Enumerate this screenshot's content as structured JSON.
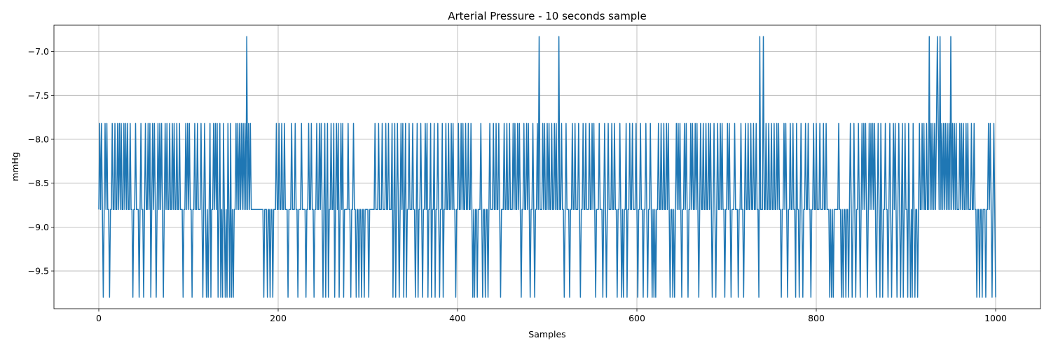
{
  "chart_data": {
    "type": "line",
    "title": "Arterial Pressure - 10 seconds sample",
    "xlabel": "Samples",
    "ylabel": "mmHg",
    "xlim": [
      -50,
      1050
    ],
    "ylim": [
      -9.93,
      -6.7
    ],
    "xticks": [
      0,
      200,
      400,
      600,
      800,
      1000
    ],
    "xtick_labels": [
      "0",
      "200",
      "400",
      "600",
      "800",
      "1000"
    ],
    "yticks": [
      -9.5,
      -9.0,
      -8.5,
      -8.0,
      -7.5,
      -7.0
    ],
    "ytick_labels": [
      "−9.5",
      "−9.0",
      "−8.5",
      "−8.0",
      "−7.5",
      "−7.0"
    ],
    "grid": true,
    "legend": "none",
    "levels": [
      -9.8,
      -8.8,
      -7.82,
      -6.83
    ],
    "series": [
      {
        "color": "#1f77b4",
        "x_start": 0,
        "x_step": 1,
        "count": 1001,
        "peak_samples": [
          165,
          491,
          513,
          737,
          741,
          926,
          935,
          938,
          950
        ],
        "low_samples": [
          5,
          12,
          38,
          45,
          50,
          58,
          64,
          72,
          94,
          104,
          116,
          120,
          122,
          125,
          133,
          136,
          138,
          141,
          143,
          146,
          148,
          150,
          184,
          188,
          191,
          194,
          211,
          222,
          231,
          240,
          250,
          253,
          256,
          263,
          268,
          273,
          281,
          287,
          290,
          293,
          296,
          301,
          328,
          331,
          335,
          340,
          343,
          353,
          356,
          361,
          367,
          371,
          375,
          380,
          384,
          398,
          417,
          419,
          422,
          428,
          431,
          434,
          448,
          471,
          481,
          486,
          519,
          525,
          537,
          554,
          562,
          566,
          578,
          583,
          585,
          589,
          601,
          607,
          612,
          617,
          619,
          621,
          637,
          640,
          642,
          650,
          657,
          669,
          684,
          688,
          698,
          705,
          713,
          719,
          736,
          761,
          768,
          777,
          781,
          785,
          794,
          815,
          817,
          819,
          828,
          830,
          833,
          836,
          840,
          844,
          849,
          857,
          867,
          871,
          874,
          880,
          884,
          890,
          894,
          897,
          902,
          905,
          907,
          910,
          913,
          979,
          982,
          985,
          989,
          996,
          1000
        ],
        "high_samples": [
          1,
          3,
          7,
          9,
          15,
          18,
          21,
          23,
          25,
          28,
          30,
          32,
          35,
          41,
          47,
          52,
          55,
          57,
          60,
          62,
          66,
          68,
          70,
          74,
          76,
          79,
          82,
          84,
          87,
          90,
          97,
          99,
          101,
          107,
          110,
          114,
          118,
          124,
          128,
          130,
          132,
          135,
          139,
          144,
          147,
          153,
          155,
          157,
          159,
          161,
          163,
          167,
          169,
          198,
          201,
          204,
          207,
          215,
          219,
          226,
          234,
          237,
          243,
          246,
          248,
          252,
          255,
          259,
          262,
          265,
          267,
          270,
          272,
          278,
          284,
          308,
          312,
          316,
          320,
          323,
          327,
          330,
          333,
          337,
          339,
          342,
          346,
          350,
          355,
          359,
          364,
          366,
          370,
          374,
          378,
          383,
          387,
          390,
          393,
          395,
          401,
          404,
          406,
          409,
          412,
          415,
          426,
          436,
          440,
          443,
          446,
          452,
          455,
          458,
          462,
          464,
          467,
          469,
          474,
          477,
          479,
          484,
          489,
          495,
          497,
          500,
          502,
          505,
          508,
          510,
          516,
          521,
          528,
          531,
          535,
          540,
          543,
          547,
          550,
          552,
          558,
          564,
          568,
          572,
          575,
          581,
          588,
          592,
          595,
          599,
          604,
          610,
          615,
          624,
          627,
          630,
          633,
          635,
          644,
          646,
          648,
          653,
          655,
          660,
          662,
          665,
          667,
          671,
          674,
          677,
          680,
          682,
          686,
          690,
          693,
          695,
          701,
          703,
          709,
          716,
          721,
          724,
          727,
          730,
          733,
          744,
          747,
          750,
          753,
          756,
          758,
          764,
          766,
          771,
          774,
          778,
          783,
          788,
          791,
          797,
          800,
          804,
          808,
          811,
          825,
          838,
          842,
          847,
          851,
          853,
          855,
          859,
          861,
          863,
          865,
          869,
          872,
          877,
          882,
          886,
          888,
          892,
          896,
          899,
          903,
          908,
          915,
          918,
          920,
          923,
          928,
          930,
          932,
          934,
          936,
          940,
          942,
          944,
          946,
          948,
          952,
          954,
          956,
          960,
          962,
          964,
          967,
          969,
          973,
          976,
          992,
          994,
          998
        ]
      }
    ]
  }
}
